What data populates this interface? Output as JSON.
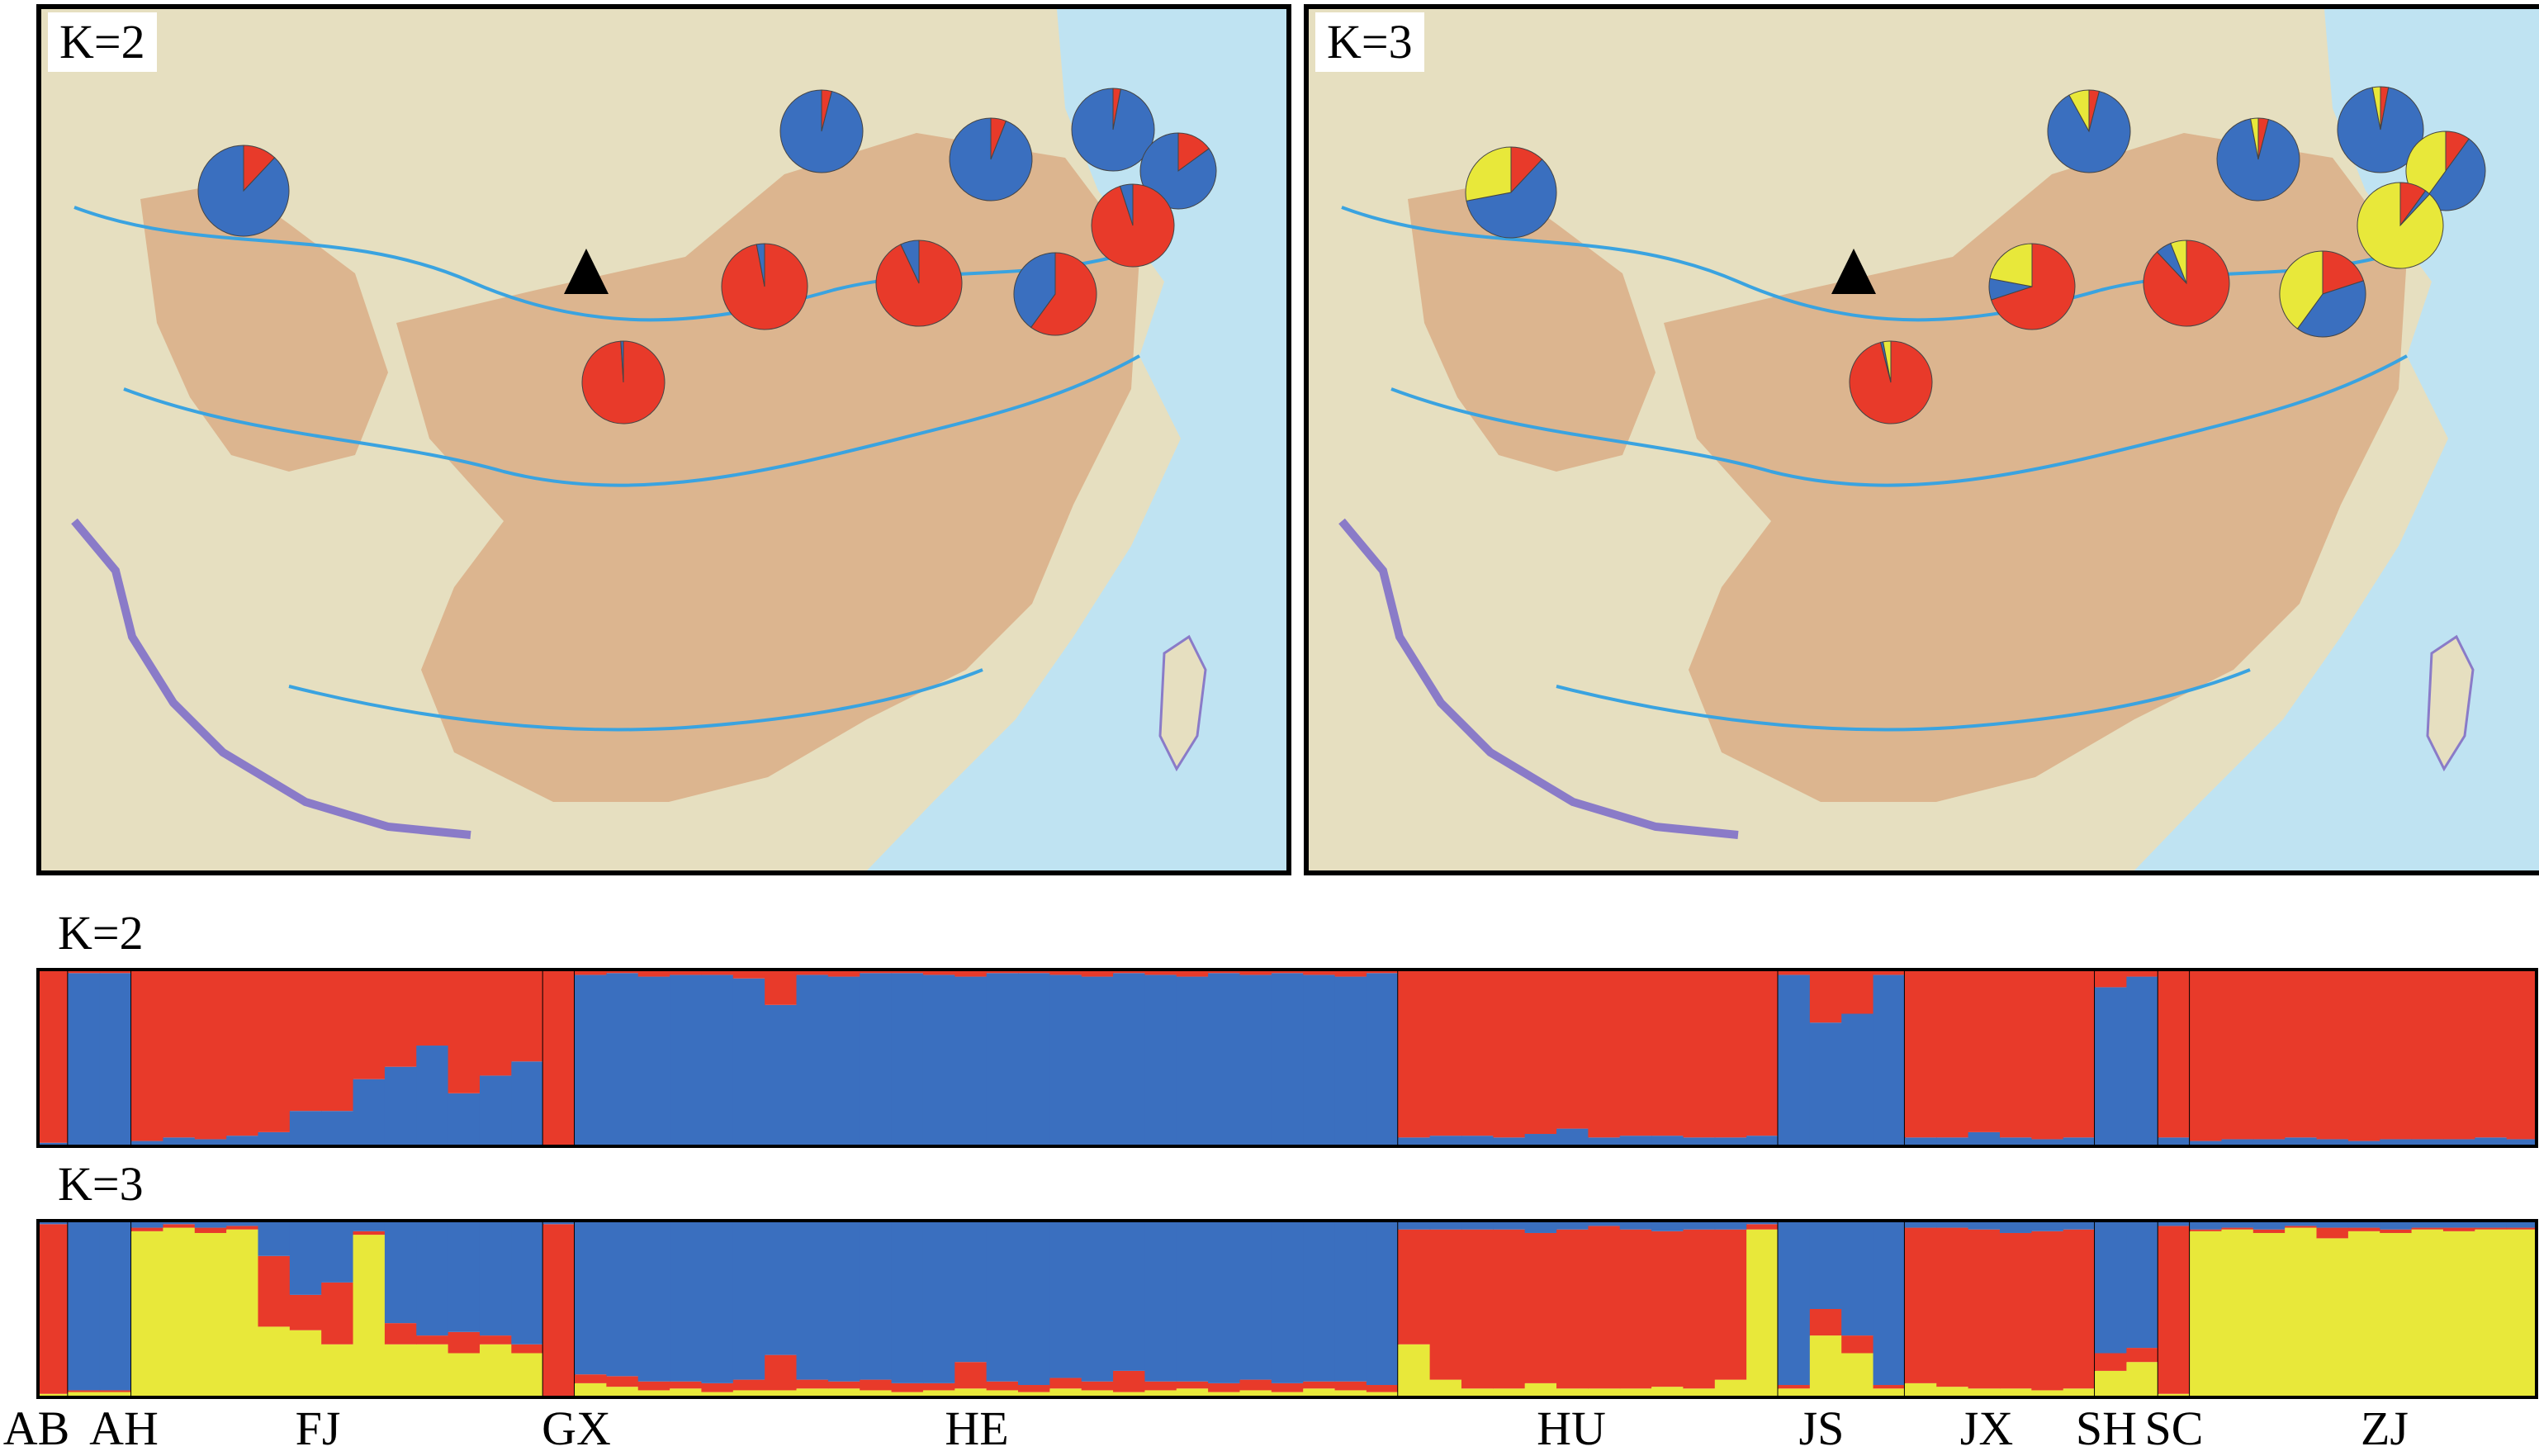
{
  "figure": {
    "panel_k2_label": "K=2",
    "panel_k3_label": "K=3",
    "bar_k2_label": "K=2",
    "bar_k3_label": "K=3"
  },
  "colors": {
    "cluster_red": "#E83A2A",
    "cluster_blue": "#3A6FBF",
    "cluster_yellow": "#E8E83A",
    "map_land": "#E6DFC0",
    "map_sea": "#BFE3F2",
    "map_region": "#D9AE86",
    "map_river": "#3AA3E0",
    "map_border": "#8A7BC8"
  },
  "chart_data": [
    {
      "type": "pie",
      "title": "K=2",
      "panel": "map",
      "series": [
        "cluster 1 (red)",
        "cluster 2 (blue)"
      ],
      "pies": [
        {
          "values": [
            0.04,
            0.96
          ]
        },
        {
          "values": [
            0.06,
            0.94
          ]
        },
        {
          "values": [
            0.03,
            0.97
          ]
        },
        {
          "values": [
            0.15,
            0.85
          ]
        },
        {
          "values": [
            0.12,
            0.88
          ]
        },
        {
          "values": [
            0.95,
            0.05
          ]
        },
        {
          "values": [
            0.97,
            0.03
          ]
        },
        {
          "values": [
            0.93,
            0.07
          ]
        },
        {
          "values": [
            0.95,
            0.05
          ]
        },
        {
          "values": [
            0.6,
            0.4
          ]
        },
        {
          "values": [
            0.99,
            0.01
          ]
        }
      ],
      "triangle": "sampling site marker"
    },
    {
      "type": "pie",
      "title": "K=3",
      "panel": "map",
      "series": [
        "cluster 1 (red)",
        "cluster 2 (blue)",
        "cluster 3 (yellow)"
      ],
      "pies": [
        {
          "values": [
            0.04,
            0.88,
            0.08
          ]
        },
        {
          "values": [
            0.04,
            0.93,
            0.03
          ]
        },
        {
          "values": [
            0.03,
            0.94,
            0.03
          ]
        },
        {
          "values": [
            0.1,
            0.5,
            0.4
          ]
        },
        {
          "values": [
            0.12,
            0.6,
            0.28
          ]
        },
        {
          "values": [
            0.85,
            0.02,
            0.13
          ]
        },
        {
          "values": [
            0.1,
            0.02,
            0.88
          ]
        },
        {
          "values": [
            0.7,
            0.08,
            0.22
          ]
        },
        {
          "values": [
            0.88,
            0.06,
            0.06
          ]
        },
        {
          "values": [
            0.2,
            0.4,
            0.4
          ]
        },
        {
          "values": [
            0.96,
            0.01,
            0.03
          ]
        }
      ]
    },
    {
      "type": "bar",
      "title": "K=2",
      "stacked": true,
      "ylim": [
        0,
        1
      ],
      "series_order_bottom_to_top": [
        "blue",
        "red"
      ],
      "groups": [
        {
          "name": "AB",
          "n": 1,
          "blue": [
            0.02
          ]
        },
        {
          "name": "AH",
          "n": 2,
          "blue": [
            0.98,
            0.98
          ]
        },
        {
          "name": "FJ",
          "n": 13,
          "blue": [
            0.03,
            0.05,
            0.04,
            0.06,
            0.08,
            0.2,
            0.2,
            0.38,
            0.45,
            0.57,
            0.3,
            0.4,
            0.48
          ]
        },
        {
          "name": "GX",
          "n": 1,
          "blue": [
            0.0
          ]
        },
        {
          "name": "HE",
          "n": 26,
          "blue": [
            0.97,
            0.98,
            0.96,
            0.97,
            0.97,
            0.95,
            0.8,
            0.97,
            0.96,
            0.98,
            0.98,
            0.97,
            0.96,
            0.98,
            0.98,
            0.97,
            0.96,
            0.98,
            0.97,
            0.96,
            0.98,
            0.97,
            0.98,
            0.97,
            0.96,
            0.98
          ]
        },
        {
          "name": "HU",
          "n": 12,
          "blue": [
            0.05,
            0.06,
            0.06,
            0.05,
            0.07,
            0.1,
            0.05,
            0.06,
            0.06,
            0.05,
            0.05,
            0.06
          ]
        },
        {
          "name": "JS",
          "n": 4,
          "blue": [
            0.97,
            0.7,
            0.75,
            0.97
          ]
        },
        {
          "name": "JX",
          "n": 6,
          "blue": [
            0.05,
            0.05,
            0.08,
            0.05,
            0.04,
            0.05
          ]
        },
        {
          "name": "SH",
          "n": 2,
          "blue": [
            0.9,
            0.96
          ]
        },
        {
          "name": "SC",
          "n": 1,
          "blue": [
            0.05
          ]
        },
        {
          "name": "ZJ",
          "n": 11,
          "blue": [
            0.03,
            0.04,
            0.04,
            0.05,
            0.04,
            0.03,
            0.04,
            0.04,
            0.04,
            0.05,
            0.04
          ]
        }
      ]
    },
    {
      "type": "bar",
      "title": "K=3",
      "stacked": true,
      "ylim": [
        0,
        1
      ],
      "series_order_bottom_to_top": [
        "yellow",
        "red",
        "blue"
      ],
      "groups": [
        {
          "name": "AB",
          "n": 1,
          "yellow": [
            0.02
          ],
          "red": [
            0.96
          ]
        },
        {
          "name": "AH",
          "n": 2,
          "yellow": [
            0.03,
            0.03
          ],
          "red": [
            0.01,
            0.01
          ]
        },
        {
          "name": "FJ",
          "n": 13,
          "yellow": [
            0.94,
            0.96,
            0.93,
            0.95,
            0.4,
            0.38,
            0.3,
            0.92,
            0.3,
            0.3,
            0.25,
            0.3,
            0.25
          ],
          "red": [
            0.02,
            0.02,
            0.03,
            0.02,
            0.4,
            0.2,
            0.35,
            0.02,
            0.12,
            0.05,
            0.12,
            0.05,
            0.05
          ]
        },
        {
          "name": "GX",
          "n": 1,
          "yellow": [
            0.0
          ],
          "red": [
            0.98
          ]
        },
        {
          "name": "HE",
          "n": 26,
          "yellow": [
            0.08,
            0.06,
            0.04,
            0.05,
            0.03,
            0.04,
            0.04,
            0.05,
            0.05,
            0.04,
            0.03,
            0.04,
            0.05,
            0.04,
            0.03,
            0.05,
            0.04,
            0.03,
            0.04,
            0.05,
            0.03,
            0.04,
            0.03,
            0.05,
            0.04,
            0.03
          ],
          "red": [
            0.05,
            0.06,
            0.05,
            0.04,
            0.05,
            0.06,
            0.2,
            0.05,
            0.04,
            0.06,
            0.05,
            0.04,
            0.15,
            0.05,
            0.04,
            0.06,
            0.05,
            0.12,
            0.05,
            0.04,
            0.05,
            0.06,
            0.05,
            0.04,
            0.05,
            0.04
          ]
        },
        {
          "name": "HU",
          "n": 12,
          "yellow": [
            0.3,
            0.1,
            0.05,
            0.05,
            0.08,
            0.05,
            0.05,
            0.05,
            0.06,
            0.05,
            0.1,
            0.95
          ],
          "red": [
            0.65,
            0.85,
            0.9,
            0.9,
            0.85,
            0.9,
            0.92,
            0.9,
            0.88,
            0.9,
            0.85,
            0.03
          ]
        },
        {
          "name": "JS",
          "n": 4,
          "yellow": [
            0.05,
            0.35,
            0.25,
            0.05
          ],
          "red": [
            0.02,
            0.15,
            0.1,
            0.02
          ]
        },
        {
          "name": "JX",
          "n": 6,
          "yellow": [
            0.08,
            0.06,
            0.05,
            0.05,
            0.04,
            0.05
          ],
          "red": [
            0.88,
            0.9,
            0.9,
            0.88,
            0.9,
            0.9
          ]
        },
        {
          "name": "SH",
          "n": 2,
          "yellow": [
            0.15,
            0.2
          ],
          "red": [
            0.1,
            0.08
          ]
        },
        {
          "name": "SC",
          "n": 1,
          "yellow": [
            0.02
          ],
          "red": [
            0.95
          ]
        },
        {
          "name": "ZJ",
          "n": 11,
          "yellow": [
            0.94,
            0.95,
            0.93,
            0.96,
            0.9,
            0.94,
            0.93,
            0.95,
            0.94,
            0.95,
            0.95
          ],
          "red": [
            0.01,
            0.01,
            0.02,
            0.01,
            0.06,
            0.02,
            0.02,
            0.01,
            0.02,
            0.01,
            0.01
          ]
        }
      ]
    }
  ]
}
